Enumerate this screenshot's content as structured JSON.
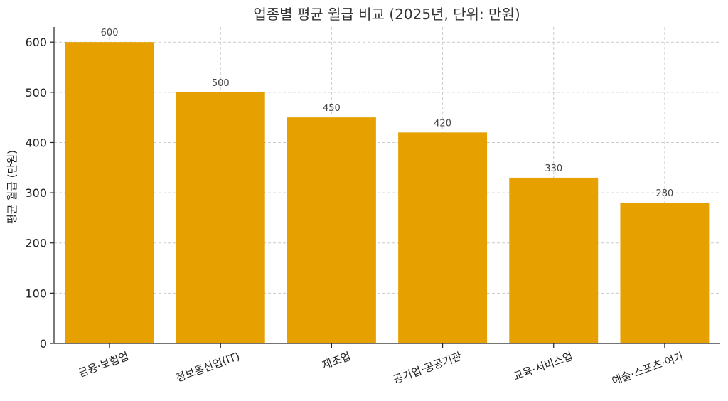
{
  "chart_data": {
    "type": "bar",
    "title": "업종별 평균 월급 비교 (2025년, 단위: 만원)",
    "xlabel": "",
    "ylabel": "평균 월급 (만원)",
    "categories": [
      "금융·보험업",
      "정보통신업(IT)",
      "제조업",
      "공기업·공공기관",
      "교육·서비스업",
      "예술·스포츠·여가"
    ],
    "values": [
      600,
      500,
      450,
      420,
      330,
      280
    ],
    "data_labels": [
      "600",
      "500",
      "450",
      "420",
      "330",
      "280"
    ],
    "yticks": [
      0,
      100,
      200,
      300,
      400,
      500,
      600
    ],
    "ylim": [
      0,
      630
    ],
    "grid": true,
    "legend": "none",
    "bar_color": "#E6A100"
  }
}
